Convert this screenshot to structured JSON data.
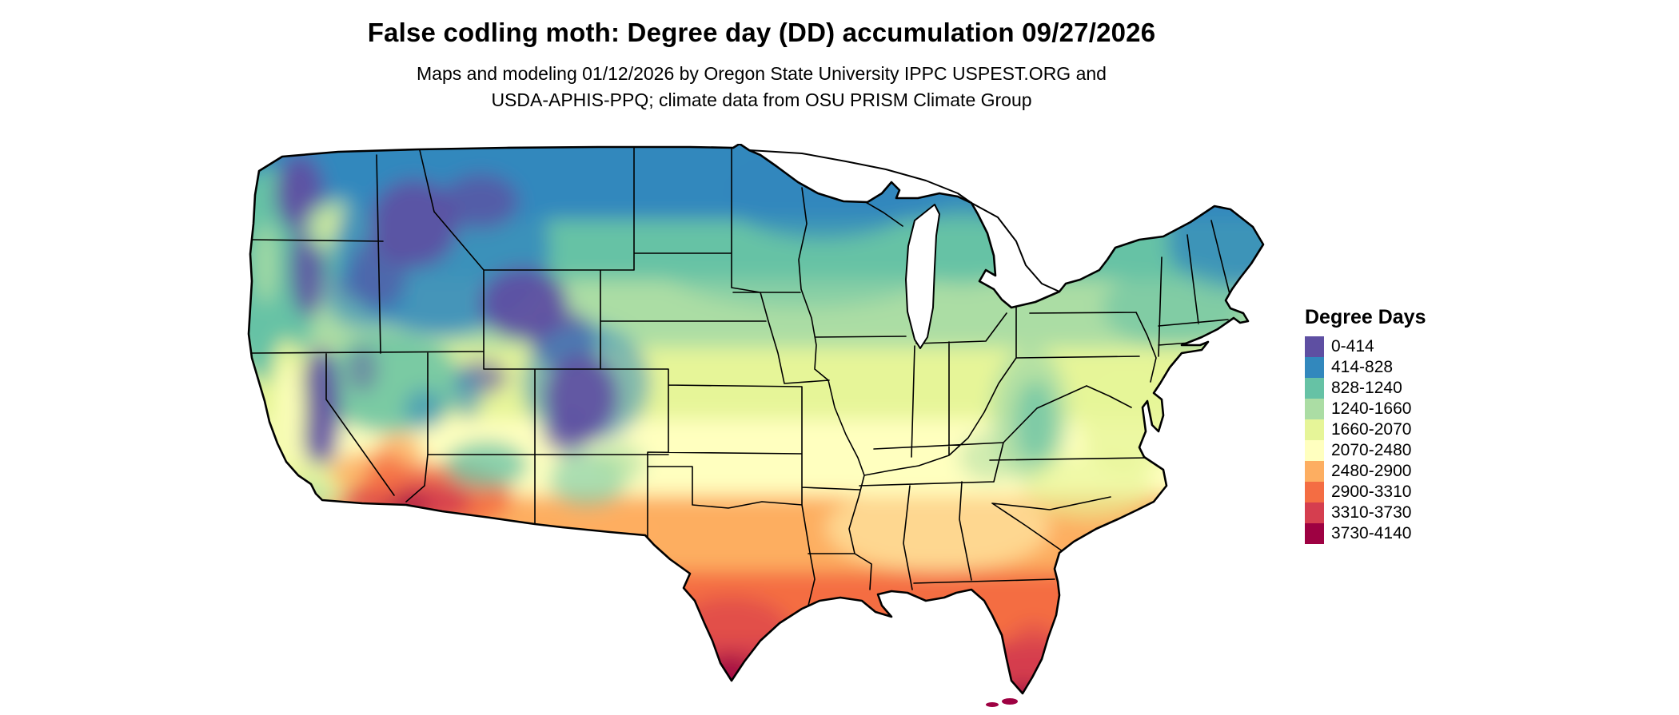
{
  "header": {
    "title": "False codling moth: Degree day (DD) accumulation 09/27/2026",
    "subtitle_line1": "Maps and modeling 01/12/2026 by Oregon State University IPPC USPEST.ORG and",
    "subtitle_line2": "USDA-APHIS-PPQ; climate data from OSU PRISM Climate Group"
  },
  "map": {
    "name": "Contiguous United States degree-day accumulation map"
  },
  "legend": {
    "title": "Degree Days",
    "items": [
      {
        "label": "0-414",
        "color": "#5e4fa2"
      },
      {
        "label": "414-828",
        "color": "#3288bd"
      },
      {
        "label": "828-1240",
        "color": "#66c2a5"
      },
      {
        "label": "1240-1660",
        "color": "#abdda4"
      },
      {
        "label": "1660-2070",
        "color": "#e6f598"
      },
      {
        "label": "2070-2480",
        "color": "#ffffbf"
      },
      {
        "label": "2480-2900",
        "color": "#fdae61"
      },
      {
        "label": "2900-3310",
        "color": "#f46d43"
      },
      {
        "label": "3310-3730",
        "color": "#d53e4f"
      },
      {
        "label": "3730-4140",
        "color": "#9e0142"
      }
    ]
  }
}
